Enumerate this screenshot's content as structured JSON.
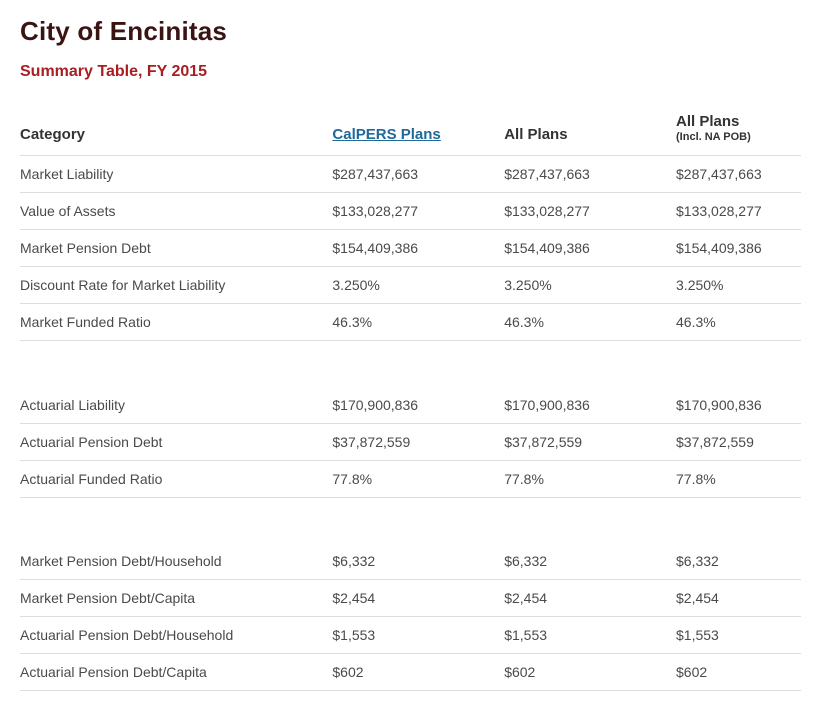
{
  "page": {
    "title": "City of Encinitas",
    "subtitle": "Summary Table, FY 2015"
  },
  "colors": {
    "title": "#3a1413",
    "subtitle_red": "#a81e22",
    "link_blue": "#20699b",
    "row_border": "#dddddd",
    "body_text": "#4a4a4a"
  },
  "table": {
    "headers": {
      "category": "Category",
      "col1": "CalPERS Plans",
      "col2": "All Plans",
      "col3_line1": "All Plans",
      "col3_line2": "(Incl. NA POB)"
    },
    "sections": [
      {
        "rows": [
          {
            "category": "Market Liability",
            "values": [
              "$287,437,663",
              "$287,437,663",
              "$287,437,663"
            ]
          },
          {
            "category": "Value of Assets",
            "values": [
              "$133,028,277",
              "$133,028,277",
              "$133,028,277"
            ]
          },
          {
            "category": "Market Pension Debt",
            "values": [
              "$154,409,386",
              "$154,409,386",
              "$154,409,386"
            ]
          },
          {
            "category": "Discount Rate for Market Liability",
            "values": [
              "3.250%",
              "3.250%",
              "3.250%"
            ]
          },
          {
            "category": "Market Funded Ratio",
            "values": [
              "46.3%",
              "46.3%",
              "46.3%"
            ]
          }
        ]
      },
      {
        "rows": [
          {
            "category": "Actuarial Liability",
            "values": [
              "$170,900,836",
              "$170,900,836",
              "$170,900,836"
            ]
          },
          {
            "category": "Actuarial Pension Debt",
            "values": [
              "$37,872,559",
              "$37,872,559",
              "$37,872,559"
            ]
          },
          {
            "category": "Actuarial Funded Ratio",
            "values": [
              "77.8%",
              "77.8%",
              "77.8%"
            ]
          }
        ]
      },
      {
        "rows": [
          {
            "category": "Market Pension Debt/Household",
            "values": [
              "$6,332",
              "$6,332",
              "$6,332"
            ]
          },
          {
            "category": "Market Pension Debt/Capita",
            "values": [
              "$2,454",
              "$2,454",
              "$2,454"
            ]
          },
          {
            "category": "Actuarial Pension Debt/Household",
            "values": [
              "$1,553",
              "$1,553",
              "$1,553"
            ]
          },
          {
            "category": "Actuarial Pension Debt/Capita",
            "values": [
              "$602",
              "$602",
              "$602"
            ]
          }
        ]
      }
    ]
  }
}
